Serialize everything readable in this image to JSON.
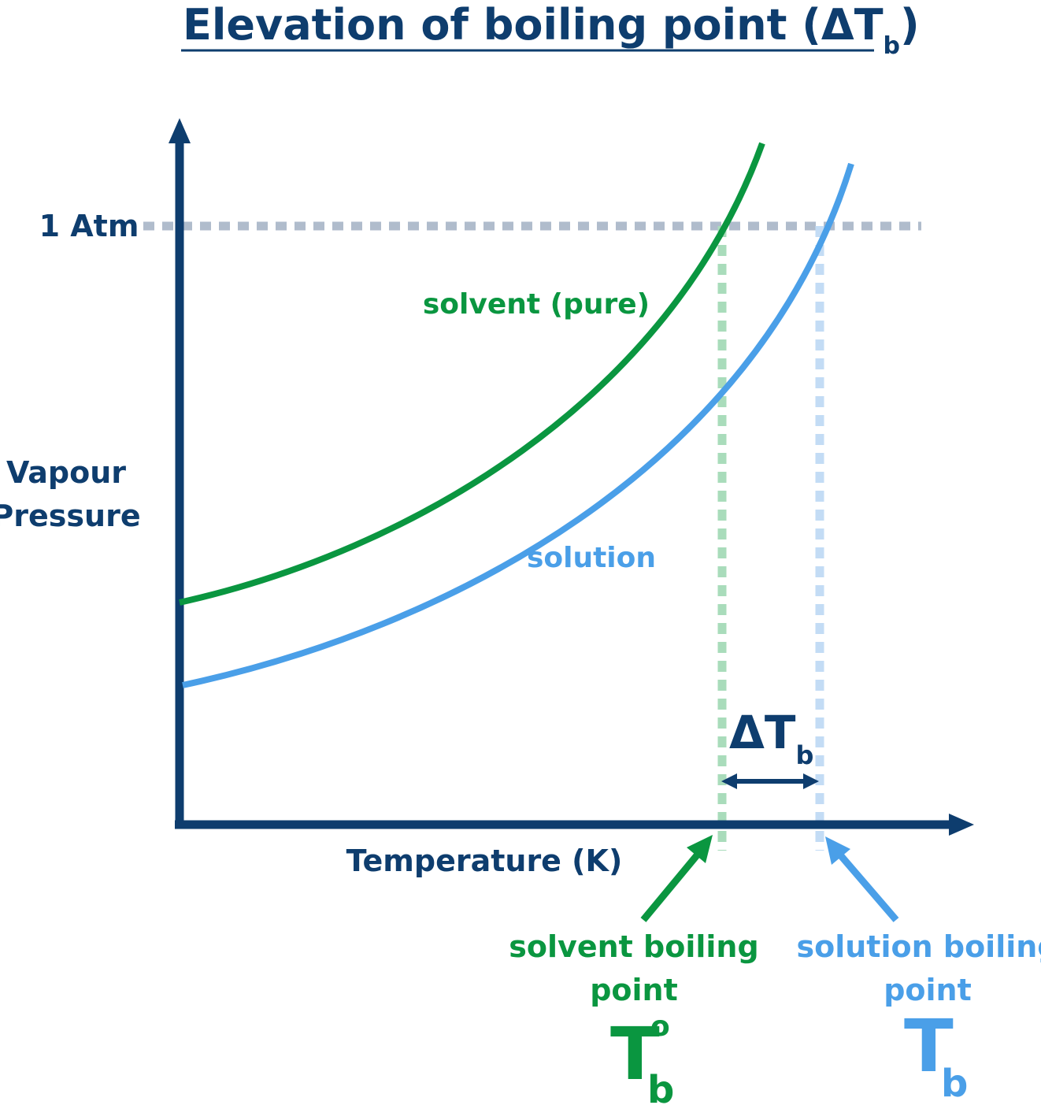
{
  "title": {
    "main": "Elevation of boiling point (ΔT",
    "sub": "b",
    "close": ")"
  },
  "axes": {
    "y_label_line1": "Vapour",
    "y_label_line2": "Pressure",
    "x_label": "Temperature (K)",
    "ref_label": "1 Atm"
  },
  "curves": {
    "solvent": {
      "label": "solvent (pure)",
      "color": "#0a9640"
    },
    "solution": {
      "label": "solution",
      "color": "#4a9fe8"
    }
  },
  "delta": {
    "symbol": "ΔT",
    "sub": "b"
  },
  "solvent_bp": {
    "line1": "solvent boiling",
    "line2": "point",
    "symbol": "T",
    "sup": "o",
    "sub": "b"
  },
  "solution_bp": {
    "line1": "solution boiling",
    "line2": "point",
    "symbol": "T",
    "sub": "b"
  },
  "colors": {
    "navy": "#0e3d6e",
    "dotted_ref": "#b0bccc",
    "dotted_green": "#a9dcbb",
    "dotted_blue": "#c3dcf5"
  }
}
